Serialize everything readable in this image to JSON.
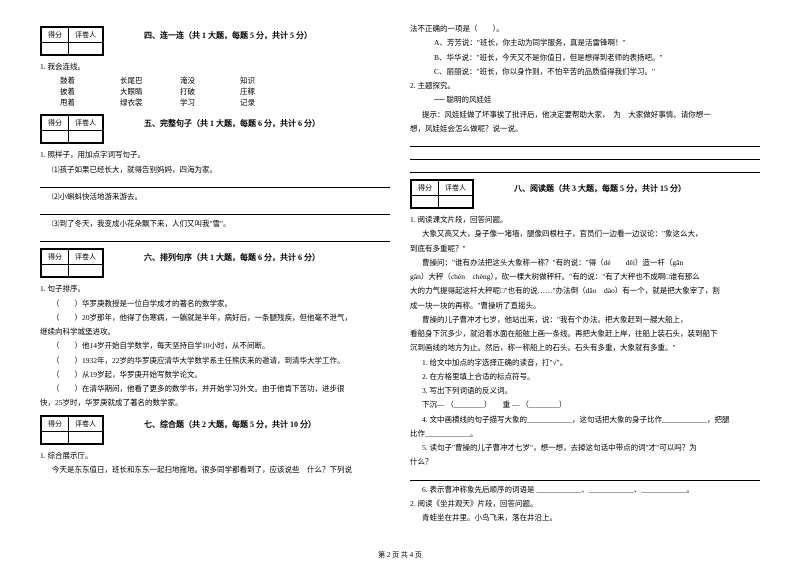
{
  "scoreBox": {
    "scoreLabel": "得分",
    "reviewerLabel": "评卷人"
  },
  "section4": {
    "title": "四、连一连（共 1 大题，每题 5 分，共计 5 分）",
    "q1": "1. 我会连线。",
    "matches": {
      "r1c1": "鼓着",
      "r1c2": "长尾巴",
      "r1c3": "淹没",
      "r1c4": "知识",
      "r2c1": "披着",
      "r2c2": "大眼睛",
      "r2c3": "打破",
      "r2c4": "庄稼",
      "r3c1": "甩着",
      "r3c2": "绿衣裳",
      "r3c3": "学习",
      "r3c4": "记录"
    }
  },
  "section5": {
    "title": "五、完整句子（共 1 大题，每题 6 分，共计 6 分）",
    "q1": "1. 照样子，用加点字词写句子。",
    "q1a": "⑴孩子如果已经长大，就得告别妈妈，四海为家。",
    "q1b": "⑵小蝌蚪快活地游来游去。",
    "q1c": "⑶到了冬天，我变成小花朵飘下来，人们又叫我\"雪\"。"
  },
  "section6": {
    "title": "六、排列句序（共 1 大题，每题 6 分，共计 6 分）",
    "q1": "1. 句子排序。",
    "items": {
      "a": "（　　）华罗庚教授是一位自学成才的著名的数学家。",
      "b": "（　　）20岁那年，他得了伤寒病，一躺就是半年，病好后，一条腿残疾，但他毫不泄气，",
      "b2": "继续向科学城堡进攻。",
      "c": "（　　）他14岁开始自学数学，每天坚持自学10小时，从不间断。",
      "d": "（　　）1932年，22岁的华罗庚应清华大学数学系主任熊庆来的邀请，到清华大学工作。",
      "e": "（　　）从19岁起，华罗庚开始写数学论文。",
      "f": "（　　）在清华期间，他看了更多的数学书，并开始学习外文。由于他肯下苦功，进步很",
      "f2": "快，25岁时，华罗庚就成了著名的数学家。"
    }
  },
  "section7": {
    "title": "七、综合题（共 2 大题，每题 5 分，共计 10 分）",
    "q1": "1. 综合展示厅。",
    "q1text": "今天是东东值日，班长和东东一起扫地拖地。很多同学都看到了，应该说些　什么？下列说"
  },
  "rightCol": {
    "continuation": "法不正确的一项是（　　）。",
    "optA": "A、芳芳说：\"班长，你主动为同学服务，真是活雷锋啊！\"",
    "optB": "B、华华说：\"班长，今天又不是你值日，但是想得到老师的表扬吧。\"",
    "optC": "C、丽丽说：\"班长，你以身作则，不怕辛苦的品质值得我们学习。\"",
    "q2": "2. 主题探究。",
    "q2title": "── 聪明的风娃娃",
    "q2hint": "提示：风娃娃做了坏事挨了批评后，他决定要帮助大家，　为　大家做好事情。请你想一",
    "q2hint2": "想，风娃娃会怎么做呢？说一说。"
  },
  "section8": {
    "title": "八、阅读题（共 3 大题，每题 5 分，共计 15 分）",
    "q1": "1. 阅读课文片段，回答问题。",
    "p1": "大象又高又大，身子像一堵墙，腿像四根柱子，官员们一边看一边议论：\"象这么大，",
    "p1b": "到底有多重呢？\"",
    "p2": "曹操问：\"谁有办法把这头大象称一称？\"有的说：\"得（dé　　děi）造一杆（gān",
    "p2b": "gǎn）大秤（chèn　chèng），砍一棵大树做秤杆。\"有的说：\"有了大秤也不成啊□谁有那么",
    "p2c": "大的力气提得起这杆大秤呢□\"也有的说……\"办法倒（dǎo　dào）有一个，就是把大象宰了，割",
    "p2d": "成一块一块的再称。\"曹操听了直摇头。",
    "p3": "曹操的儿子曹冲才七岁，他站出来，说：\"我有个办法。把大象赶到一艘大船上，",
    "p3b": "看船身下沉多少，就沿着水面在船舷上画一条线。再把大象赶上岸，往船上装石头，装到船下",
    "p3c": "沉到画线的地方为止。然后，称一称船上的石头。石头有多重，大象就有多重。\"",
    "sq1": "1. 给文中加点的字选择正确的读音，打\"√\"。",
    "sq2": "2. 在方格里填上合适的标点符号。",
    "sq3": "3. 写出下列词语的反义词。",
    "sq3a": "下沉— （________）　　重 — （________）",
    "sq4": "4. 文中画横线的句子描写大象的____________，这句话把大象的身子比作____________，把腿",
    "sq4b": "比作____________。",
    "sq5": "5. 读句子\"曹操的儿子曹冲才七岁\"，想一想，去掉这句话中带点的词\"才\"可以吗？为",
    "sq5b": "什么？",
    "sq6": "6. 表示曹冲称象先后顺序的词语是 ____________、____________、____________。",
    "q2r": "2. 阅读《坐井观天》片段，回答问题。",
    "q2rtext": "青蛙坐在井里。小鸟飞来，落在井沿上。"
  },
  "footer": "第 2 页 共 4 页"
}
